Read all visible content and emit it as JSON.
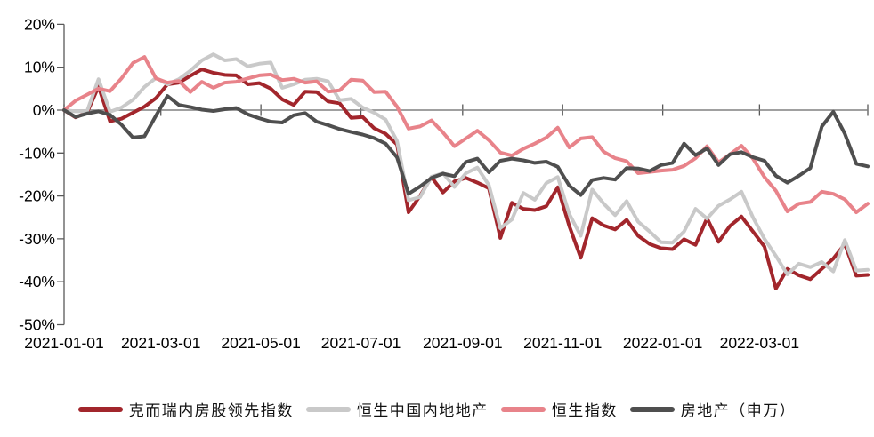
{
  "chart_data": {
    "type": "line",
    "title": "",
    "xlabel": "",
    "ylabel": "",
    "ylim": [
      -50,
      20
    ],
    "grid": "zero-line-only",
    "legend_position": "bottom",
    "axis_color": "#595959",
    "zero_line_color": "#808080",
    "y_ticks": [
      {
        "value": 20,
        "label": "20%"
      },
      {
        "value": 10,
        "label": "10%"
      },
      {
        "value": 0,
        "label": "0%"
      },
      {
        "value": -10,
        "label": "-10%"
      },
      {
        "value": -20,
        "label": "-20%"
      },
      {
        "value": -30,
        "label": "-30%"
      },
      {
        "value": -40,
        "label": "-40%"
      },
      {
        "value": -50,
        "label": "-50%"
      }
    ],
    "x_ticks": [
      {
        "day": 0,
        "label": "2021-01-01"
      },
      {
        "day": 59,
        "label": "2021-03-01"
      },
      {
        "day": 120,
        "label": "2021-05-01"
      },
      {
        "day": 181,
        "label": "2021-07-01"
      },
      {
        "day": 243,
        "label": "2021-09-01"
      },
      {
        "day": 304,
        "label": "2021-11-01"
      },
      {
        "day": 365,
        "label": "2022-01-01"
      },
      {
        "day": 424,
        "label": "2022-03-01"
      },
      {
        "day": 490,
        "label": ""
      }
    ],
    "x": [
      "2021-01-01",
      "2021-01-08",
      "2021-01-15",
      "2021-01-22",
      "2021-01-29",
      "2021-02-05",
      "2021-02-12",
      "2021-02-19",
      "2021-02-26",
      "2021-03-05",
      "2021-03-12",
      "2021-03-19",
      "2021-03-26",
      "2021-04-02",
      "2021-04-09",
      "2021-04-16",
      "2021-04-23",
      "2021-04-30",
      "2021-05-07",
      "2021-05-14",
      "2021-05-21",
      "2021-05-28",
      "2021-06-04",
      "2021-06-11",
      "2021-06-18",
      "2021-06-25",
      "2021-07-02",
      "2021-07-09",
      "2021-07-16",
      "2021-07-23",
      "2021-07-30",
      "2021-08-06",
      "2021-08-13",
      "2021-08-20",
      "2021-08-27",
      "2021-09-03",
      "2021-09-10",
      "2021-09-17",
      "2021-09-24",
      "2021-10-01",
      "2021-10-08",
      "2021-10-15",
      "2021-10-22",
      "2021-10-29",
      "2021-11-05",
      "2021-11-12",
      "2021-11-19",
      "2021-11-26",
      "2021-12-03",
      "2021-12-10",
      "2021-12-17",
      "2021-12-24",
      "2021-12-31",
      "2022-01-07",
      "2022-01-14",
      "2022-01-21",
      "2022-01-28",
      "2022-02-04",
      "2022-02-11",
      "2022-02-18",
      "2022-02-25",
      "2022-03-04",
      "2022-03-11",
      "2022-03-18",
      "2022-03-25",
      "2022-04-01",
      "2022-04-08",
      "2022-04-15",
      "2022-04-22",
      "2022-04-29",
      "2022-05-06"
    ],
    "series": [
      {
        "name": "克而瑞内房股领先指数",
        "color": "#A2262C",
        "values": [
          0,
          -1.7,
          -0.6,
          5.5,
          -2.6,
          -2,
          -0.6,
          0.8,
          2.8,
          6,
          6.4,
          8,
          9.5,
          8.7,
          8.2,
          8.1,
          6,
          6.3,
          5,
          2.5,
          1.2,
          4.3,
          4.2,
          2,
          1.6,
          -1.8,
          -1.6,
          -4.2,
          -5.5,
          -8,
          -23.8,
          -20,
          -15.6,
          -19.2,
          -16.6,
          -15.8,
          -16.9,
          -18.2,
          -29.8,
          -21.6,
          -23,
          -23.3,
          -22.4,
          -18,
          -27,
          -34.4,
          -25.2,
          -26.9,
          -27.8,
          -25.6,
          -29.3,
          -31.2,
          -32.2,
          -32.4,
          -30.1,
          -31.4,
          -25.2,
          -30.7,
          -27,
          -24.8,
          -28.3,
          -31.8,
          -41.6,
          -37,
          -38.5,
          -39.4,
          -37,
          -34.6,
          -31.2,
          -38.6,
          -38.4
        ]
      },
      {
        "name": "恒生中国内地地产",
        "color": "#C9C9C9",
        "values": [
          0,
          -0.3,
          -0.3,
          7.2,
          -0.4,
          0.6,
          2.4,
          5.4,
          7.5,
          6,
          7.2,
          9.2,
          11.6,
          13,
          11.6,
          11.9,
          10.2,
          10.8,
          11.1,
          5.2,
          6,
          7.1,
          7.3,
          6.7,
          2.3,
          2.6,
          0.6,
          -0.6,
          -2.2,
          -7.2,
          -21,
          -20.3,
          -15.5,
          -14.7,
          -17.9,
          -14.7,
          -13.4,
          -17.5,
          -27.5,
          -25.5,
          -19.3,
          -20.9,
          -17,
          -15.6,
          -24.2,
          -29.3,
          -18.5,
          -21.8,
          -24.5,
          -21.2,
          -26,
          -28.3,
          -30.8,
          -30.9,
          -28.3,
          -23,
          -25.3,
          -22.3,
          -20.8,
          -19,
          -25,
          -30,
          -34,
          -38.3,
          -35.8,
          -36.6,
          -35.4,
          -37.6,
          -30.3,
          -37.4,
          -37.2
        ]
      },
      {
        "name": "恒生指数",
        "color": "#E8838A",
        "values": [
          0,
          2.2,
          3.6,
          5,
          4.4,
          7.4,
          11,
          12.4,
          7.4,
          6.4,
          6.8,
          4.2,
          6.6,
          5.2,
          6.4,
          6.6,
          7.4,
          8.1,
          8.3,
          7,
          7.3,
          6.4,
          6.7,
          4.3,
          4.6,
          7.1,
          6.9,
          4.2,
          4.3,
          0.8,
          -4.3,
          -3.8,
          -2.4,
          -5.2,
          -8.4,
          -6.6,
          -4.8,
          -7,
          -9.9,
          -10.6,
          -9,
          -7.8,
          -6.4,
          -4.1,
          -8.7,
          -6.6,
          -6.3,
          -9.7,
          -11.2,
          -11.9,
          -14.7,
          -14.4,
          -14.1,
          -13.9,
          -13,
          -11.2,
          -8.4,
          -12.2,
          -10.3,
          -8.3,
          -11.3,
          -15.6,
          -18.8,
          -23.6,
          -21.8,
          -21.4,
          -19,
          -19.5,
          -20.8,
          -23.8,
          -21.8
        ]
      },
      {
        "name": "房地产（申万）",
        "color": "#4F4F4F",
        "values": [
          0,
          -1.6,
          -0.8,
          -0.3,
          -1.1,
          -3.4,
          -6.4,
          -6.1,
          -1.3,
          3.3,
          1.2,
          0.7,
          0.1,
          -0.2,
          0.2,
          0.5,
          -1,
          -1.9,
          -2.7,
          -2.9,
          -1.2,
          -0.7,
          -2.7,
          -3.5,
          -4.4,
          -5.1,
          -5.7,
          -6.5,
          -7.8,
          -11,
          -19.5,
          -17.8,
          -15.8,
          -14.8,
          -15.4,
          -12.1,
          -11.3,
          -14.5,
          -11.8,
          -11.3,
          -11.7,
          -12.3,
          -12,
          -13.2,
          -17.6,
          -19.8,
          -16.3,
          -15.8,
          -16.2,
          -13.5,
          -13.6,
          -14.2,
          -12.8,
          -12.3,
          -7.8,
          -10.5,
          -8.9,
          -12.8,
          -10.3,
          -9.8,
          -11,
          -11.8,
          -15.3,
          -16.9,
          -15.3,
          -13.5,
          -3.8,
          -0.4,
          -5.5,
          -12.5,
          -13.1
        ]
      }
    ]
  }
}
